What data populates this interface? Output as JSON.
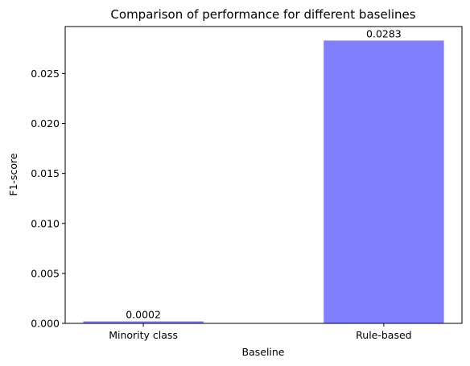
{
  "chart_data": {
    "type": "bar",
    "title": "Comparison of performance for different baselines",
    "xlabel": "Baseline",
    "ylabel": "F1-score",
    "categories": [
      "Minority class",
      "Rule-based"
    ],
    "values": [
      0.0002,
      0.0283
    ],
    "data_labels": [
      "0.0002",
      "0.0283"
    ],
    "ylim": [
      0,
      0.0297
    ],
    "yticks": [
      0.0,
      0.005,
      0.01,
      0.015,
      0.02,
      0.025
    ],
    "ytick_labels": [
      "0.000",
      "0.005",
      "0.010",
      "0.015",
      "0.020",
      "0.025"
    ],
    "bar_color": "#8080ff",
    "grid": false,
    "legend": "none"
  }
}
